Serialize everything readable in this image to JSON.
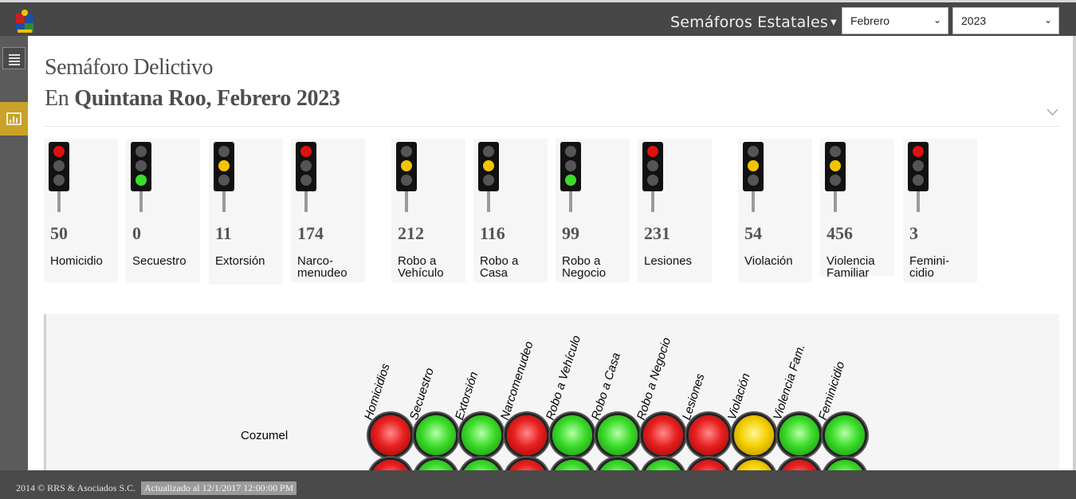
{
  "header": {
    "nav_label": "Semáforos Estatales",
    "month": "Febrero",
    "year": "2023"
  },
  "page": {
    "title": "Semáforo Delictivo",
    "subtitle_prefix": "En",
    "subtitle_bold": "Quintana Roo, Febrero 2023"
  },
  "cards": [
    {
      "value": "50",
      "label": "Homicidio",
      "light": "red"
    },
    {
      "value": "0",
      "label": "Secuestro",
      "light": "green"
    },
    {
      "value": "11",
      "label": "Extorsión",
      "light": "yellow"
    },
    {
      "value": "174",
      "label": "Narco-\nmenudeo",
      "light": "red"
    },
    {
      "value": "212",
      "label": "Robo a\nVehículo",
      "light": "yellow"
    },
    {
      "value": "116",
      "label": "Robo a\nCasa",
      "light": "yellow"
    },
    {
      "value": "99",
      "label": "Robo a\nNegocio",
      "light": "green"
    },
    {
      "value": "231",
      "label": "Lesiones",
      "light": "red"
    },
    {
      "value": "54",
      "label": "Violación",
      "light": "yellow"
    },
    {
      "value": "456",
      "label": "Violencia\nFamiliar",
      "light": "yellow"
    },
    {
      "value": "3",
      "label": "Femini-\ncidio",
      "light": "red"
    }
  ],
  "matrix": {
    "columns": [
      "Homicidios",
      "Secuestro",
      "Extorsión",
      "Narcomenudeo",
      "Robo a Vehículo",
      "Robo a Casa",
      "Robo a Negocio",
      "Lesiones",
      "Violación",
      "Violencia Fam.",
      "Feminicidio"
    ],
    "rows": [
      {
        "name": "Cozumel",
        "lights": [
          "red",
          "green",
          "green",
          "red",
          "green",
          "green",
          "red",
          "red",
          "yellow",
          "green",
          "green"
        ]
      },
      {
        "name": "",
        "lights": [
          "red",
          "green",
          "green",
          "red",
          "green",
          "green",
          "green",
          "red",
          "yellow",
          "red",
          "green"
        ]
      }
    ]
  },
  "footer": {
    "copyright": "2014 © RRS & Asociados S.C.",
    "updated": "Actualizado al 12/1/2017 12:00:00 PM"
  },
  "colors": {
    "red": "#e01010",
    "yellow": "#f5c400",
    "green": "#3bdc2a",
    "topbar": "#474747",
    "accent": "#c9a227"
  }
}
